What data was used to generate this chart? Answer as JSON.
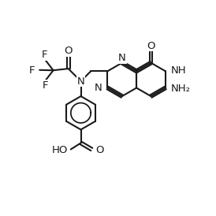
{
  "lc": "#1a1a1a",
  "bg": "#ffffff",
  "lw": 1.5,
  "fs": 9.5,
  "xlim": [
    -0.5,
    11.5
  ],
  "ylim": [
    -4.2,
    7.8
  ]
}
